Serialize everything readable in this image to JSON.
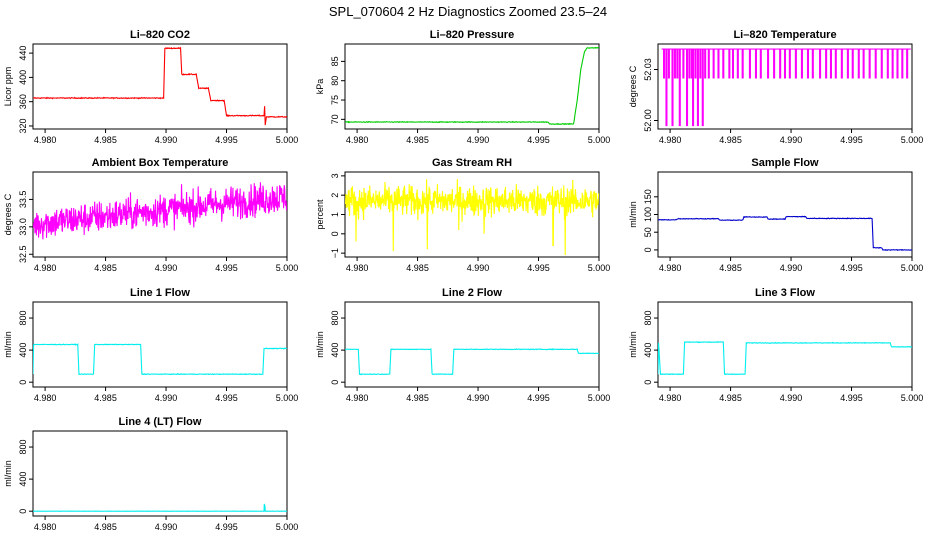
{
  "figure": {
    "title": "SPL_070604  2 Hz Diagnostics Zoomed 23.5–24"
  },
  "chart_data": [
    {
      "id": "co2",
      "type": "line",
      "title": "Li–820 CO2",
      "ylabel": "Licor ppm",
      "xlim": [
        4.979,
        5.0
      ],
      "ylim": [
        315,
        455
      ],
      "color": "#ff0000",
      "xticks": [
        "4.980",
        "4.985",
        "4.990",
        "4.995",
        "5.000"
      ],
      "yticks": [
        "320",
        "360",
        "400",
        "440"
      ],
      "series": [
        {
          "name": "CO2",
          "noise": 0.8,
          "x": [
            4.979,
            4.9898,
            4.9899,
            4.9912,
            4.9913,
            4.9925,
            4.9927,
            4.9935,
            4.9937,
            4.9948,
            4.995,
            4.9981,
            4.99815,
            4.9982,
            4.9983,
            5.0
          ],
          "y": [
            366,
            366,
            448,
            448,
            405,
            405,
            382,
            382,
            362,
            362,
            337,
            337,
            352,
            322,
            335,
            335
          ]
        }
      ]
    },
    {
      "id": "pressure",
      "type": "line",
      "title": "Li–820 Pressure",
      "ylabel": "kPa",
      "xlim": [
        4.979,
        5.0
      ],
      "ylim": [
        67.5,
        89.5
      ],
      "color": "#00cc00",
      "xticks": [
        "4.980",
        "4.985",
        "4.990",
        "4.995",
        "5.000"
      ],
      "yticks": [
        "70",
        "75",
        "80",
        "85"
      ],
      "series": [
        {
          "name": "Pressure",
          "noise": 0.1,
          "x": [
            4.979,
            4.9958,
            4.9959,
            4.9979,
            4.9982,
            4.9985,
            4.9988,
            4.999,
            5.0
          ],
          "y": [
            69.3,
            69.3,
            68.8,
            68.8,
            75,
            83,
            87.5,
            88.5,
            88.5
          ]
        }
      ]
    },
    {
      "id": "temperature",
      "type": "line",
      "title": "Li–820 Temperature",
      "ylabel": "degrees C",
      "xlim": [
        4.979,
        5.0
      ],
      "ylim": [
        51.995,
        52.045
      ],
      "color": "#ff00ff",
      "xticks": [
        "4.980",
        "4.985",
        "4.990",
        "4.995",
        "5.000"
      ],
      "yticks": [
        "52.00",
        "52.03"
      ],
      "series": [
        {
          "name": "Temperature",
          "pattern": "dropouts",
          "high": 52.042,
          "mid": 52.025,
          "low": 51.997,
          "lowSpikesX": [
            4.9797,
            4.9802,
            4.9808,
            4.9814,
            4.9819,
            4.9823,
            4.9827
          ],
          "midSpikesX": [
            4.9795,
            4.9799,
            4.9804,
            4.9806,
            4.9811,
            4.9816,
            4.9818,
            4.9821,
            4.9825,
            4.9829,
            4.9832,
            4.9836,
            4.984,
            4.9844,
            4.9849,
            4.9852,
            4.9856,
            4.986,
            4.9866,
            4.9871,
            4.9875,
            4.9881,
            4.9886,
            4.9891,
            4.9895,
            4.9899,
            4.9904,
            4.9909,
            4.9914,
            4.9918,
            4.9924,
            4.9929,
            4.9933,
            4.9937,
            4.9942,
            4.9947,
            4.9951,
            4.9956,
            4.996,
            4.9965,
            4.997,
            4.9975,
            4.998,
            4.9984,
            4.9988,
            4.9992,
            4.9996
          ]
        }
      ]
    },
    {
      "id": "ambient",
      "type": "line",
      "title": "Ambient Box Temperature",
      "ylabel": "degrees C",
      "xlim": [
        4.979,
        5.0
      ],
      "ylim": [
        32.45,
        34.0
      ],
      "color": "#ff00ff",
      "xticks": [
        "4.980",
        "4.985",
        "4.990",
        "4.995",
        "5.000"
      ],
      "yticks": [
        "32.5",
        "33.0",
        "33.5"
      ],
      "series": [
        {
          "name": "Ambient",
          "pattern": "noisy",
          "start": 33.05,
          "end": 33.55,
          "amp": 0.28,
          "points": 700
        }
      ]
    },
    {
      "id": "rh",
      "type": "line",
      "title": "Gas Stream RH",
      "ylabel": "percent",
      "xlim": [
        4.979,
        5.0
      ],
      "ylim": [
        -1.2,
        3.2
      ],
      "color": "#ffff00",
      "xticks": [
        "4.980",
        "4.985",
        "4.990",
        "4.995",
        "5.000"
      ],
      "yticks": [
        "−1",
        "0",
        "1",
        "2",
        "3"
      ],
      "series": [
        {
          "name": "RH",
          "pattern": "noisy",
          "start": 1.7,
          "end": 1.7,
          "amp": 0.75,
          "points": 700,
          "spikesX": [
            4.9799,
            4.983,
            4.9858,
            4.9884,
            4.9905,
            4.9962,
            4.9972
          ],
          "spikesY": [
            -0.4,
            -0.9,
            -0.8,
            0.2,
            0.0,
            -0.6,
            -1.1
          ]
        }
      ]
    },
    {
      "id": "sample_flow",
      "type": "line",
      "title": "Sample Flow",
      "ylabel": "ml/min",
      "xlim": [
        4.979,
        5.0
      ],
      "ylim": [
        -20,
        220
      ],
      "color": "#0000cc",
      "xticks": [
        "4.980",
        "4.985",
        "4.990",
        "4.995",
        "5.000"
      ],
      "yticks": [
        "0",
        "50",
        "100",
        "150"
      ],
      "series": [
        {
          "name": "Sample",
          "noise": 1.0,
          "x": [
            4.979,
            4.9805,
            4.9806,
            4.984,
            4.9841,
            4.986,
            4.9861,
            4.988,
            4.9881,
            4.9895,
            4.9896,
            4.9912,
            4.9913,
            4.9967,
            4.9968,
            4.9975,
            4.9976,
            5.0
          ],
          "y": [
            85,
            85,
            88,
            88,
            84,
            84,
            93,
            93,
            87,
            87,
            94,
            94,
            89,
            89,
            6,
            6,
            0,
            0
          ]
        }
      ]
    },
    {
      "id": "line1",
      "type": "line",
      "title": "Line 1 Flow",
      "ylabel": "ml/min",
      "xlim": [
        4.979,
        5.0
      ],
      "ylim": [
        -60,
        1000
      ],
      "color": "#00eeee",
      "xticks": [
        "4.980",
        "4.985",
        "4.990",
        "4.995",
        "5.000"
      ],
      "yticks": [
        "0",
        "400",
        "800"
      ],
      "series": [
        {
          "name": "Line1",
          "noise": 4,
          "x": [
            4.979,
            4.97905,
            4.9827,
            4.9828,
            4.984,
            4.9841,
            4.9879,
            4.988,
            4.998,
            4.9981,
            5.0
          ],
          "y": [
            100,
            470,
            470,
            100,
            100,
            470,
            470,
            100,
            100,
            420,
            420
          ]
        }
      ]
    },
    {
      "id": "line2",
      "type": "line",
      "title": "Line 2 Flow",
      "ylabel": "ml/min",
      "xlim": [
        4.979,
        5.0
      ],
      "ylim": [
        -60,
        1000
      ],
      "color": "#00eeee",
      "xticks": [
        "4.980",
        "4.985",
        "4.990",
        "4.995",
        "5.000"
      ],
      "yticks": [
        "0",
        "400",
        "800"
      ],
      "series": [
        {
          "name": "Line2",
          "noise": 4,
          "x": [
            4.979,
            4.9801,
            4.9802,
            4.9827,
            4.9828,
            4.9861,
            4.9862,
            4.9879,
            4.988,
            4.9982,
            4.9983,
            5.0
          ],
          "y": [
            410,
            410,
            100,
            100,
            410,
            410,
            100,
            100,
            410,
            410,
            360,
            360
          ]
        }
      ]
    },
    {
      "id": "line3",
      "type": "line",
      "title": "Line 3 Flow",
      "ylabel": "ml/min",
      "xlim": [
        4.979,
        5.0
      ],
      "ylim": [
        -60,
        1000
      ],
      "color": "#00eeee",
      "xticks": [
        "4.980",
        "4.985",
        "4.990",
        "4.995",
        "5.000"
      ],
      "yticks": [
        "0",
        "400",
        "800"
      ],
      "series": [
        {
          "name": "Line3",
          "noise": 4,
          "x": [
            4.979,
            4.97905,
            4.9792,
            4.9811,
            4.9812,
            4.9844,
            4.9845,
            4.9862,
            4.9863,
            4.9982,
            4.9983,
            5.0
          ],
          "y": [
            100,
            490,
            100,
            100,
            500,
            500,
            100,
            100,
            490,
            490,
            440,
            440
          ]
        }
      ]
    },
    {
      "id": "line4",
      "type": "line",
      "title": "Line 4 (LT) Flow",
      "ylabel": "ml/min",
      "xlim": [
        4.979,
        5.0
      ],
      "ylim": [
        -60,
        1000
      ],
      "color": "#00eeee",
      "xticks": [
        "4.980",
        "4.985",
        "4.990",
        "4.995",
        "5.000"
      ],
      "yticks": [
        "0",
        "400",
        "800"
      ],
      "series": [
        {
          "name": "Line4",
          "noise": 1.5,
          "x": [
            4.979,
            4.9981,
            4.99812,
            4.99818,
            4.9982,
            5.0
          ],
          "y": [
            0,
            0,
            90,
            60,
            0,
            0
          ]
        }
      ]
    }
  ]
}
